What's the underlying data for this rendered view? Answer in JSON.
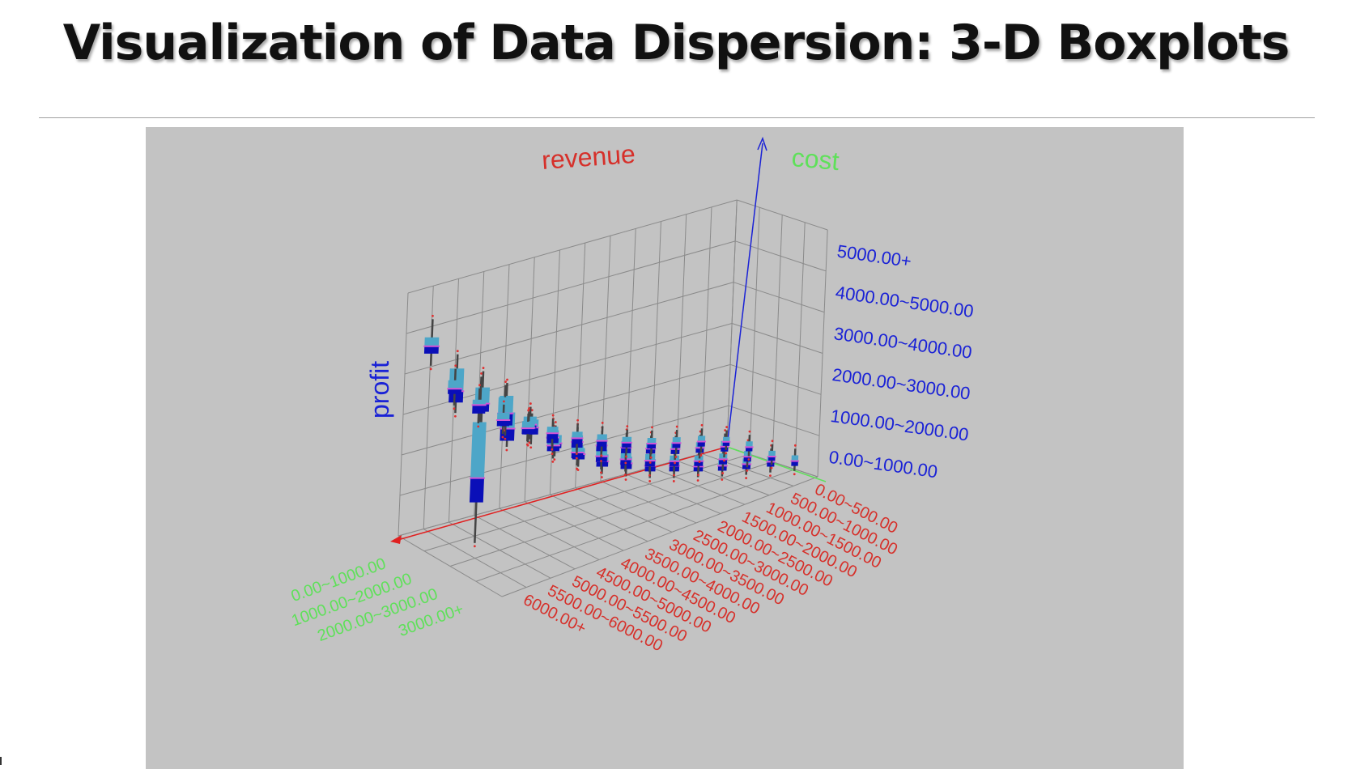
{
  "slide": {
    "title": "Visualization of Data Dispersion: 3-D Boxplots"
  },
  "chart_data": {
    "type": "3d-boxplot",
    "title": "",
    "axes": {
      "revenue": {
        "label": "revenue",
        "color": "#d6302a",
        "categories": [
          "0.00~500.00",
          "500.00~1000.00",
          "1000.00~1500.00",
          "1500.00~2000.00",
          "2000.00~2500.00",
          "2500.00~3000.00",
          "3000.00~3500.00",
          "3500.00~4000.00",
          "4000.00~4500.00",
          "4500.00~5000.00",
          "5000.00~5500.00",
          "5500.00~6000.00",
          "6000.00+"
        ]
      },
      "cost": {
        "label": "cost",
        "color": "#5fe05a",
        "categories": [
          "0.00~1000.00",
          "1000.00~2000.00",
          "2000.00~3000.00",
          "3000.00+"
        ]
      },
      "profit": {
        "label": "profit",
        "color": "#1a22d6",
        "categories": [
          "0.00~1000.00",
          "1000.00~2000.00",
          "2000.00~3000.00",
          "3000.00~4000.00",
          "4000.00~5000.00",
          "5000.00+"
        ]
      }
    },
    "box_colors": {
      "upper": "#4da6c8",
      "lower": "#0a0fb8",
      "median": "#d455d4",
      "whisker": "#444444",
      "outlier": "#e03030"
    },
    "boxes": [
      {
        "revenue": 12,
        "cost": 0,
        "min": 4.3,
        "q1": 4.6,
        "median": 4.78,
        "q3": 5.0,
        "max": 5.45
      },
      {
        "revenue": 12,
        "cost": 1,
        "min": 3.5,
        "q1": 3.76,
        "median": 4.04,
        "q3": 4.6,
        "max": 4.95
      },
      {
        "revenue": 12,
        "cost": 2,
        "min": 3.64,
        "q1": 3.9,
        "median": 4.1,
        "q3": 4.5,
        "max": 4.9
      },
      {
        "revenue": 12,
        "cost": 3,
        "min": 3.4,
        "q1": 3.55,
        "median": 3.85,
        "q3": 4.25,
        "max": 4.5
      },
      {
        "revenue": 11,
        "cost": 0,
        "min": 3.14,
        "q1": 3.42,
        "median": 3.55,
        "q3": 3.76,
        "max": 4.04
      },
      {
        "revenue": 11,
        "cost": 1,
        "min": 0.1,
        "q1": 1.1,
        "median": 1.7,
        "q3": 3.08,
        "max": 4.2
      },
      {
        "revenue": 11,
        "cost": 2,
        "min": 3.1,
        "q1": 3.35,
        "median": 3.65,
        "q3": 4.08,
        "max": 4.4
      },
      {
        "revenue": 11,
        "cost": 3,
        "min": 3.24,
        "q1": 3.48,
        "median": 3.65,
        "q3": 3.85,
        "max": 4.0
      },
      {
        "revenue": 10,
        "cost": 0,
        "min": 2.52,
        "q1": 2.76,
        "median": 2.97,
        "q3": 3.1,
        "max": 3.38
      },
      {
        "revenue": 10,
        "cost": 1,
        "min": 2.76,
        "q1": 3.0,
        "median": 3.1,
        "q3": 3.5,
        "max": 3.8
      },
      {
        "revenue": 10,
        "cost": 2,
        "min": 2.8,
        "q1": 3.0,
        "median": 3.16,
        "q3": 3.36,
        "max": 3.6
      },
      {
        "revenue": 10,
        "cost": 3,
        "min": 2.72,
        "q1": 2.92,
        "median": 3.04,
        "q3": 3.24,
        "max": 3.48
      },
      {
        "revenue": 9,
        "cost": 0,
        "min": 2.08,
        "q1": 2.27,
        "median": 2.42,
        "q3": 2.6,
        "max": 2.8
      },
      {
        "revenue": 9,
        "cost": 1,
        "min": 2.2,
        "q1": 2.39,
        "median": 2.55,
        "q3": 2.72,
        "max": 2.95
      },
      {
        "revenue": 9,
        "cost": 2,
        "min": 2.12,
        "q1": 2.3,
        "median": 2.44,
        "q3": 2.62,
        "max": 2.84
      },
      {
        "revenue": 9,
        "cost": 3,
        "min": 2.24,
        "q1": 2.42,
        "median": 2.55,
        "q3": 2.7,
        "max": 2.9
      },
      {
        "revenue": 8,
        "cost": 0,
        "min": 1.72,
        "q1": 1.9,
        "median": 2.04,
        "q3": 2.2,
        "max": 2.4
      },
      {
        "revenue": 8,
        "cost": 1,
        "min": 1.8,
        "q1": 1.98,
        "median": 2.12,
        "q3": 2.3,
        "max": 2.5
      },
      {
        "revenue": 8,
        "cost": 2,
        "min": 1.74,
        "q1": 1.92,
        "median": 2.06,
        "q3": 2.22,
        "max": 2.42
      },
      {
        "revenue": 8,
        "cost": 3,
        "min": 1.84,
        "q1": 2.02,
        "median": 2.15,
        "q3": 2.32,
        "max": 2.52
      },
      {
        "revenue": 7,
        "cost": 0,
        "min": 1.42,
        "q1": 1.6,
        "median": 1.74,
        "q3": 1.9,
        "max": 2.1
      },
      {
        "revenue": 7,
        "cost": 1,
        "min": 1.5,
        "q1": 1.68,
        "median": 1.82,
        "q3": 1.98,
        "max": 2.18
      },
      {
        "revenue": 7,
        "cost": 2,
        "min": 1.44,
        "q1": 1.62,
        "median": 1.76,
        "q3": 1.92,
        "max": 2.12
      },
      {
        "revenue": 7,
        "cost": 3,
        "min": 1.56,
        "q1": 1.74,
        "median": 1.88,
        "q3": 2.04,
        "max": 2.24
      },
      {
        "revenue": 6,
        "cost": 0,
        "min": 1.14,
        "q1": 1.3,
        "median": 1.44,
        "q3": 1.6,
        "max": 1.8
      },
      {
        "revenue": 6,
        "cost": 1,
        "min": 1.24,
        "q1": 1.4,
        "median": 1.54,
        "q3": 1.7,
        "max": 1.9
      },
      {
        "revenue": 6,
        "cost": 2,
        "min": 1.18,
        "q1": 1.34,
        "median": 1.48,
        "q3": 1.64,
        "max": 1.84
      },
      {
        "revenue": 6,
        "cost": 3,
        "min": 1.3,
        "q1": 1.46,
        "median": 1.6,
        "q3": 1.76,
        "max": 1.96
      },
      {
        "revenue": 5,
        "cost": 0,
        "min": 0.92,
        "q1": 1.06,
        "median": 1.2,
        "q3": 1.36,
        "max": 1.56
      },
      {
        "revenue": 5,
        "cost": 1,
        "min": 1.0,
        "q1": 1.16,
        "median": 1.3,
        "q3": 1.46,
        "max": 1.66
      },
      {
        "revenue": 5,
        "cost": 2,
        "min": 0.96,
        "q1": 1.1,
        "median": 1.24,
        "q3": 1.4,
        "max": 1.6
      },
      {
        "revenue": 5,
        "cost": 3,
        "min": 1.08,
        "q1": 1.24,
        "median": 1.38,
        "q3": 1.54,
        "max": 1.74
      },
      {
        "revenue": 4,
        "cost": 0,
        "min": 0.72,
        "q1": 0.86,
        "median": 0.98,
        "q3": 1.12,
        "max": 1.3
      },
      {
        "revenue": 4,
        "cost": 1,
        "min": 0.82,
        "q1": 0.96,
        "median": 1.08,
        "q3": 1.22,
        "max": 1.4
      },
      {
        "revenue": 4,
        "cost": 2,
        "min": 0.76,
        "q1": 0.9,
        "median": 1.02,
        "q3": 1.16,
        "max": 1.34
      },
      {
        "revenue": 4,
        "cost": 3,
        "min": 0.88,
        "q1": 1.02,
        "median": 1.14,
        "q3": 1.28,
        "max": 1.46
      },
      {
        "revenue": 3,
        "cost": 0,
        "min": 0.52,
        "q1": 0.66,
        "median": 0.78,
        "q3": 0.92,
        "max": 1.1
      },
      {
        "revenue": 3,
        "cost": 1,
        "min": 0.62,
        "q1": 0.76,
        "median": 0.88,
        "q3": 1.02,
        "max": 1.2
      },
      {
        "revenue": 3,
        "cost": 2,
        "min": 0.56,
        "q1": 0.7,
        "median": 0.82,
        "q3": 0.96,
        "max": 1.14
      },
      {
        "revenue": 3,
        "cost": 3,
        "min": 0.68,
        "q1": 0.82,
        "median": 0.94,
        "q3": 1.08,
        "max": 1.26
      },
      {
        "revenue": 2,
        "cost": 0,
        "min": 0.36,
        "q1": 0.5,
        "median": 0.62,
        "q3": 0.76,
        "max": 0.94
      },
      {
        "revenue": 2,
        "cost": 1,
        "min": 0.46,
        "q1": 0.6,
        "median": 0.72,
        "q3": 0.86,
        "max": 1.04
      },
      {
        "revenue": 2,
        "cost": 2,
        "min": 0.4,
        "q1": 0.54,
        "median": 0.66,
        "q3": 0.8,
        "max": 0.98
      },
      {
        "revenue": 2,
        "cost": 3,
        "min": 0.5,
        "q1": 0.64,
        "median": 0.76,
        "q3": 0.9,
        "max": 1.08
      },
      {
        "revenue": 1,
        "cost": 0,
        "min": 0.22,
        "q1": 0.36,
        "median": 0.48,
        "q3": 0.62,
        "max": 0.8
      },
      {
        "revenue": 1,
        "cost": 1,
        "min": 0.3,
        "q1": 0.44,
        "median": 0.56,
        "q3": 0.7,
        "max": 0.88
      },
      {
        "revenue": 1,
        "cost": 2,
        "min": 0.26,
        "q1": 0.4,
        "median": 0.52,
        "q3": 0.66,
        "max": 0.84
      },
      {
        "revenue": 1,
        "cost": 3,
        "min": 0.34,
        "q1": 0.48,
        "median": 0.6,
        "q3": 0.74,
        "max": 0.92
      },
      {
        "revenue": 0,
        "cost": 0,
        "min": 0.1,
        "q1": 0.2,
        "median": 0.3,
        "q3": 0.42,
        "max": 0.58
      },
      {
        "revenue": 0,
        "cost": 1,
        "min": 0.14,
        "q1": 0.26,
        "median": 0.36,
        "q3": 0.5,
        "max": 0.66
      },
      {
        "revenue": 0,
        "cost": 2,
        "min": 0.12,
        "q1": 0.22,
        "median": 0.32,
        "q3": 0.46,
        "max": 0.62
      },
      {
        "revenue": 0,
        "cost": 3,
        "min": 0.16,
        "q1": 0.28,
        "median": 0.4,
        "q3": 0.54,
        "max": 0.7
      }
    ]
  }
}
